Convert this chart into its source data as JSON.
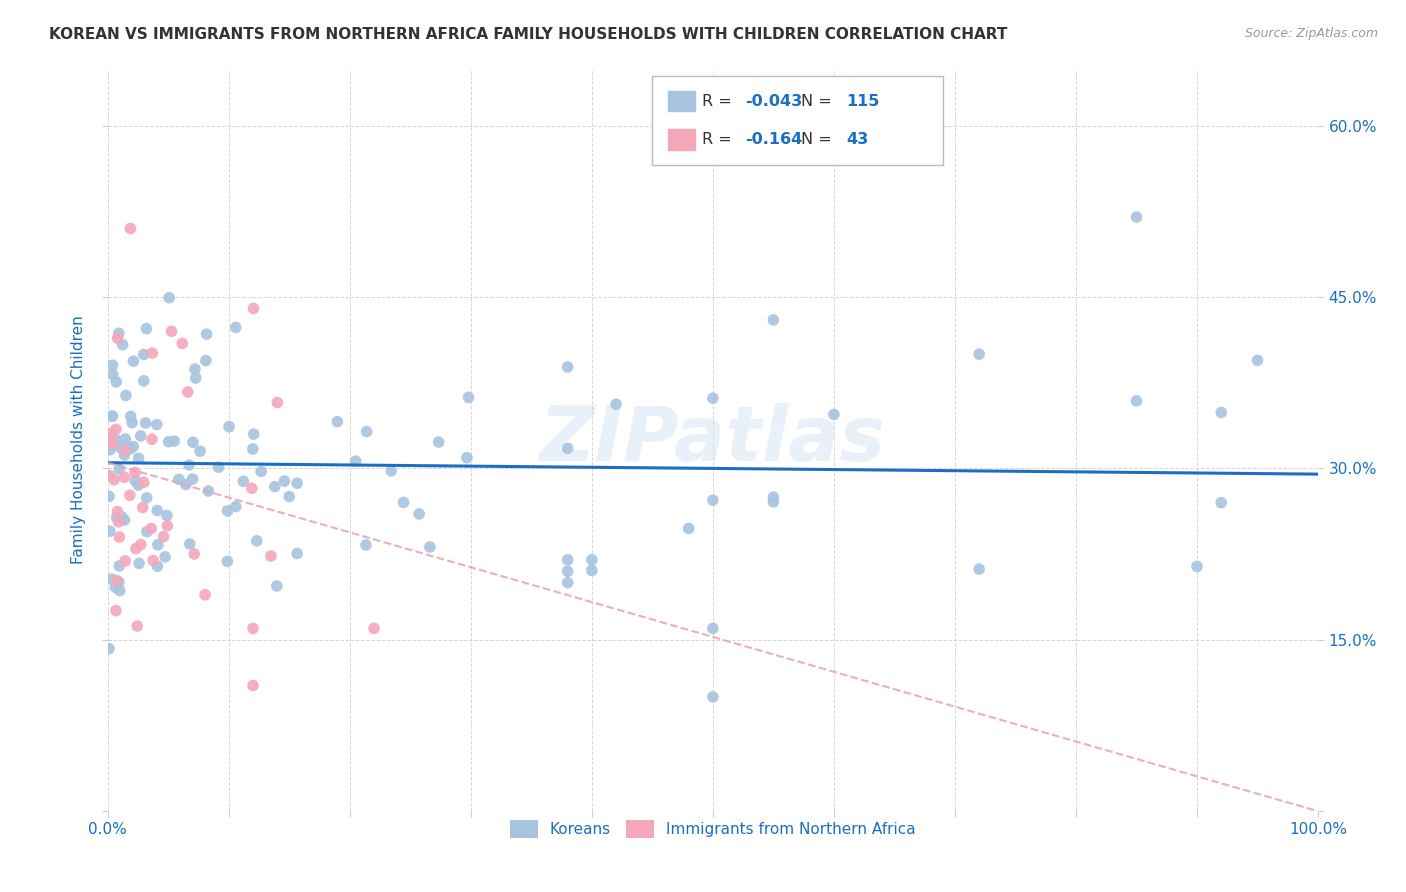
{
  "title": "KOREAN VS IMMIGRANTS FROM NORTHERN AFRICA FAMILY HOUSEHOLDS WITH CHILDREN CORRELATION CHART",
  "source": "Source: ZipAtlas.com",
  "ylabel": "Family Households with Children",
  "xlim": [
    0,
    1.0
  ],
  "ylim": [
    0,
    0.65
  ],
  "korean_color": "#a8c4e0",
  "immigrant_color": "#f4a7b9",
  "korean_line_color": "#1a6fc4",
  "immigrant_line_color": "#e8a0b4",
  "korean_R": -0.043,
  "korean_N": 115,
  "immigrant_R": -0.164,
  "immigrant_N": 43,
  "watermark": "ZIPatlas",
  "background_color": "#ffffff",
  "grid_color": "#cccccc",
  "title_color": "#333333",
  "axis_label_color": "#1a6fc4",
  "tick_label_color": "#1a6fc4"
}
